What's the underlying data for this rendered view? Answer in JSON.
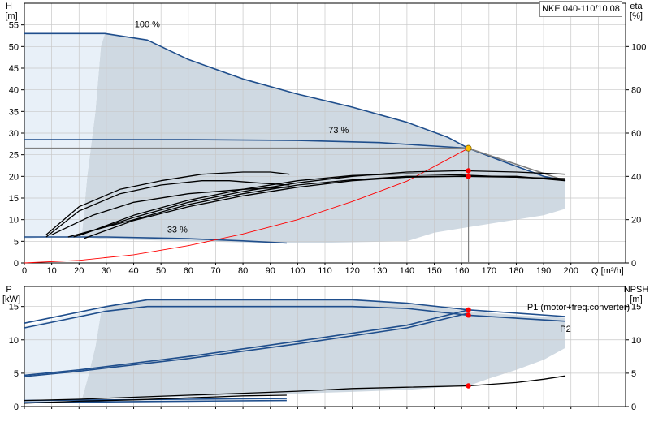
{
  "model": "NKE 040-110/10.08",
  "colors": {
    "envelope_fill": "#cfd9e2",
    "light_region": "#e8f0f8",
    "curve_blue": "#1f4e8c",
    "curve_black": "#000000",
    "system_curve": "#ff0000",
    "duty_point_yellow": "#ffc000",
    "marker_red": "#ff0000",
    "grid": "#c8c8c8"
  },
  "chart_data": [
    {
      "type": "line",
      "ylabel": "H",
      "yunit": "[m]",
      "y2label": "eta",
      "y2unit": "[%]",
      "xlabel": "Q [m³/h]",
      "xlim": [
        0,
        220
      ],
      "ylim": [
        0,
        60
      ],
      "y2lim": [
        0,
        120
      ],
      "xticks": [
        0,
        10,
        20,
        30,
        40,
        50,
        60,
        70,
        80,
        90,
        100,
        110,
        120,
        130,
        140,
        150,
        160,
        170,
        180,
        190,
        200
      ],
      "yticks": [
        0,
        5,
        10,
        15,
        20,
        25,
        30,
        35,
        40,
        45,
        50,
        55
      ],
      "y2ticks": [
        0,
        20,
        40,
        60,
        80,
        100
      ],
      "grid": true,
      "operating_range": [
        [
          0,
          53
        ],
        [
          29.5,
          53
        ],
        [
          45,
          51.5
        ],
        [
          60,
          47
        ],
        [
          80,
          42.5
        ],
        [
          100,
          39
        ],
        [
          120,
          36
        ],
        [
          140,
          32.5
        ],
        [
          155,
          29
        ],
        [
          162.5,
          26.5
        ],
        [
          175,
          23.5
        ],
        [
          190,
          20
        ],
        [
          198,
          19
        ],
        [
          198,
          12.5
        ],
        [
          190,
          11
        ],
        [
          175,
          9.5
        ],
        [
          160,
          8
        ],
        [
          150,
          7
        ],
        [
          140,
          5
        ],
        [
          96,
          4.5
        ],
        [
          30,
          5.5
        ],
        [
          21,
          6
        ],
        [
          23,
          20
        ],
        [
          26,
          35
        ],
        [
          28,
          50
        ],
        [
          29.5,
          53
        ]
      ],
      "low_flow_region": [
        [
          0,
          53
        ],
        [
          29.5,
          53
        ],
        [
          28,
          50
        ],
        [
          26,
          35
        ],
        [
          23,
          20
        ],
        [
          21,
          6
        ],
        [
          8,
          6
        ],
        [
          0,
          5.5
        ]
      ],
      "speed_labels": [
        {
          "text": "100 %",
          "x": 45,
          "y": 54.5
        },
        {
          "text": "73 %",
          "x": 115,
          "y": 30
        },
        {
          "text": "33 %",
          "x": 56,
          "y": 7
        }
      ],
      "series": [
        {
          "role": "head",
          "color": "#1f4e8c",
          "points": [
            [
              0,
              53
            ],
            [
              29.5,
              53
            ],
            [
              45,
              51.5
            ],
            [
              60,
              47
            ],
            [
              80,
              42.5
            ],
            [
              100,
              39
            ],
            [
              120,
              36
            ],
            [
              140,
              32.5
            ],
            [
              155,
              29
            ],
            [
              162.5,
              26.5
            ],
            [
              175,
              23.5
            ],
            [
              190,
              20
            ],
            [
              198,
              19
            ]
          ]
        },
        {
          "role": "head",
          "color": "#1f4e8c",
          "points": [
            [
              0,
              28.5
            ],
            [
              20,
              28.5
            ],
            [
              60,
              28.5
            ],
            [
              100,
              28.3
            ],
            [
              130,
              27.8
            ],
            [
              150,
              27
            ],
            [
              162.5,
              26.5
            ]
          ]
        },
        {
          "role": "head",
          "color": "#1f4e8c",
          "points": [
            [
              0,
              6
            ],
            [
              30,
              6
            ],
            [
              60,
              5.6
            ],
            [
              80,
              5.1
            ],
            [
              96,
              4.6
            ]
          ]
        },
        {
          "role": "head",
          "color": "#808080",
          "points": [
            [
              0,
              26.5
            ],
            [
              162.5,
              26.5
            ],
            [
              198,
              19
            ]
          ]
        },
        {
          "role": "system",
          "color": "#ff0000",
          "points": [
            [
              0,
              0
            ],
            [
              20,
              0.6
            ],
            [
              40,
              1.9
            ],
            [
              60,
              4
            ],
            [
              80,
              6.7
            ],
            [
              100,
              10
            ],
            [
              120,
              14.2
            ],
            [
              140,
              18.9
            ],
            [
              162.5,
              26.5
            ]
          ]
        },
        {
          "role": "efficiency",
          "color": "#000000",
          "points": [
            [
              8,
              6
            ],
            [
              20,
              12
            ],
            [
              35,
              16
            ],
            [
              50,
              18
            ],
            [
              65,
              19
            ],
            [
              75,
              19
            ],
            [
              85,
              18.5
            ],
            [
              97,
              18
            ]
          ]
        },
        {
          "role": "efficiency",
          "color": "#000000",
          "points": [
            [
              8,
              6.5
            ],
            [
              20,
              13
            ],
            [
              35,
              17
            ],
            [
              50,
              19
            ],
            [
              65,
              20.5
            ],
            [
              80,
              21
            ],
            [
              90,
              21
            ],
            [
              97,
              20.5
            ]
          ]
        },
        {
          "role": "efficiency",
          "color": "#000000",
          "points": [
            [
              10,
              6.5
            ],
            [
              25,
              11
            ],
            [
              40,
              14
            ],
            [
              60,
              16
            ],
            [
              80,
              17
            ],
            [
              97,
              17.5
            ]
          ]
        },
        {
          "role": "efficiency",
          "color": "#000000",
          "points": [
            [
              16,
              6
            ],
            [
              40,
              10
            ],
            [
              60,
              13.5
            ],
            [
              80,
              16
            ],
            [
              100,
              18
            ],
            [
              120,
              19.2
            ],
            [
              140,
              20
            ],
            [
              160,
              20
            ],
            [
              180,
              20
            ],
            [
              198,
              19
            ]
          ]
        },
        {
          "role": "efficiency",
          "color": "#000000",
          "points": [
            [
              18,
              6
            ],
            [
              40,
              10.5
            ],
            [
              60,
              14
            ],
            [
              80,
              16.5
            ],
            [
              100,
              18.5
            ],
            [
              120,
              20
            ],
            [
              140,
              21
            ],
            [
              160,
              21.3
            ],
            [
              180,
              21
            ],
            [
              198,
              20.5
            ]
          ]
        },
        {
          "role": "efficiency",
          "color": "#000000",
          "points": [
            [
              20,
              6.3
            ],
            [
              40,
              11
            ],
            [
              60,
              14.5
            ],
            [
              80,
              17
            ],
            [
              100,
              19
            ],
            [
              120,
              20.2
            ],
            [
              140,
              20.6
            ],
            [
              160,
              20.3
            ],
            [
              180,
              19.8
            ],
            [
              198,
              19.5
            ]
          ]
        },
        {
          "role": "efficiency",
          "color": "#000000",
          "points": [
            [
              22,
              5.7
            ],
            [
              40,
              9.8
            ],
            [
              60,
              13
            ],
            [
              80,
              15.5
            ],
            [
              100,
              17.5
            ],
            [
              120,
              19
            ],
            [
              140,
              19.8
            ],
            [
              160,
              20
            ],
            [
              180,
              19.8
            ],
            [
              198,
              19.3
            ]
          ]
        }
      ],
      "duty_point": {
        "x": 162.5,
        "y": 26.5
      },
      "duty_line_bottom": 0,
      "efficiency_markers": [
        {
          "x": 162.5,
          "y": 20
        },
        {
          "x": 162.5,
          "y": 21.3
        }
      ]
    },
    {
      "type": "line",
      "ylabel": "P",
      "yunit": "[kW]",
      "y2label": "NPSH",
      "y2unit": "[m]",
      "xlim": [
        0,
        220
      ],
      "ylim": [
        0,
        18
      ],
      "y2lim": [
        0,
        18
      ],
      "yticks": [
        0,
        5,
        10,
        15
      ],
      "y2ticks": [
        0,
        5,
        10,
        15
      ],
      "grid": true,
      "operating_range": [
        [
          0,
          12
        ],
        [
          30,
          15
        ],
        [
          45,
          16
        ],
        [
          80,
          16
        ],
        [
          120,
          16
        ],
        [
          140,
          15.5
        ],
        [
          162.5,
          14.3
        ],
        [
          180,
          13.7
        ],
        [
          198,
          13.3
        ],
        [
          198,
          8.8
        ],
        [
          190,
          7
        ],
        [
          180,
          5.5
        ],
        [
          170,
          4.2
        ],
        [
          162.5,
          3.1
        ],
        [
          150,
          2.8
        ],
        [
          140,
          2.5
        ],
        [
          120,
          2.2
        ],
        [
          96,
          1.9
        ],
        [
          60,
          1.5
        ],
        [
          30,
          1.2
        ],
        [
          21,
          1
        ],
        [
          23,
          4
        ],
        [
          26,
          9
        ],
        [
          28,
          14
        ],
        [
          30,
          15
        ],
        [
          0,
          12
        ]
      ],
      "low_flow_region": [
        [
          0,
          12
        ],
        [
          30,
          15
        ],
        [
          28,
          14
        ],
        [
          26,
          9
        ],
        [
          23,
          4
        ],
        [
          21,
          1
        ],
        [
          0,
          0.4
        ]
      ],
      "series_labels": [
        {
          "text": "P1 (motor+freq.converter)",
          "x": 184,
          "y": 14.5
        },
        {
          "text": "P2",
          "x": 196,
          "y": 11.2
        }
      ],
      "series": [
        {
          "name": "P1 (motor+freq.converter)",
          "role": "power",
          "color": "#1f4e8c",
          "points": [
            [
              0,
              12.5
            ],
            [
              30,
              15
            ],
            [
              45,
              16
            ],
            [
              80,
              16
            ],
            [
              120,
              16
            ],
            [
              140,
              15.5
            ],
            [
              162.5,
              14.5
            ],
            [
              198,
              13.5
            ]
          ]
        },
        {
          "name": "P2",
          "role": "power",
          "color": "#1f4e8c",
          "points": [
            [
              0,
              11.8
            ],
            [
              30,
              14.3
            ],
            [
              45,
              15
            ],
            [
              80,
              15
            ],
            [
              120,
              15
            ],
            [
              140,
              14.7
            ],
            [
              162.5,
              13.7
            ],
            [
              198,
              12.8
            ]
          ]
        },
        {
          "role": "power",
          "color": "#1f4e8c",
          "points": [
            [
              0,
              4.7
            ],
            [
              20,
              5.5
            ],
            [
              60,
              7.5
            ],
            [
              100,
              9.8
            ],
            [
              140,
              12.2
            ],
            [
              162.5,
              14.5
            ]
          ]
        },
        {
          "role": "power",
          "color": "#1f4e8c",
          "points": [
            [
              0,
              4.5
            ],
            [
              20,
              5.3
            ],
            [
              60,
              7.2
            ],
            [
              100,
              9.4
            ],
            [
              140,
              11.8
            ],
            [
              162.5,
              14
            ]
          ]
        },
        {
          "role": "power",
          "color": "#1f4e8c",
          "points": [
            [
              0,
              0.9
            ],
            [
              30,
              1
            ],
            [
              60,
              1.1
            ],
            [
              96,
              1.2
            ]
          ]
        },
        {
          "role": "power",
          "color": "#1f4e8c",
          "points": [
            [
              0,
              0.6
            ],
            [
              30,
              0.7
            ],
            [
              60,
              0.8
            ],
            [
              96,
              0.9
            ]
          ]
        },
        {
          "role": "npsh",
          "color": "#000000",
          "points": [
            [
              0,
              0.9
            ],
            [
              20,
              1.1
            ],
            [
              40,
              1.4
            ],
            [
              60,
              1.7
            ],
            [
              80,
              2
            ],
            [
              100,
              2.3
            ],
            [
              120,
              2.7
            ],
            [
              140,
              2.9
            ],
            [
              162.5,
              3.1
            ],
            [
              180,
              3.6
            ],
            [
              190,
              4.1
            ],
            [
              198,
              4.6
            ]
          ]
        },
        {
          "role": "npsh",
          "color": "#000000",
          "points": [
            [
              0,
              0.5
            ],
            [
              20,
              0.8
            ],
            [
              40,
              1
            ],
            [
              60,
              1.3
            ],
            [
              80,
              1.6
            ],
            [
              96,
              1.7
            ]
          ]
        }
      ],
      "markers": [
        {
          "x": 162.5,
          "y": 14.5
        },
        {
          "x": 162.5,
          "y": 13.7
        },
        {
          "x": 162.5,
          "y": 3.1
        }
      ]
    }
  ]
}
